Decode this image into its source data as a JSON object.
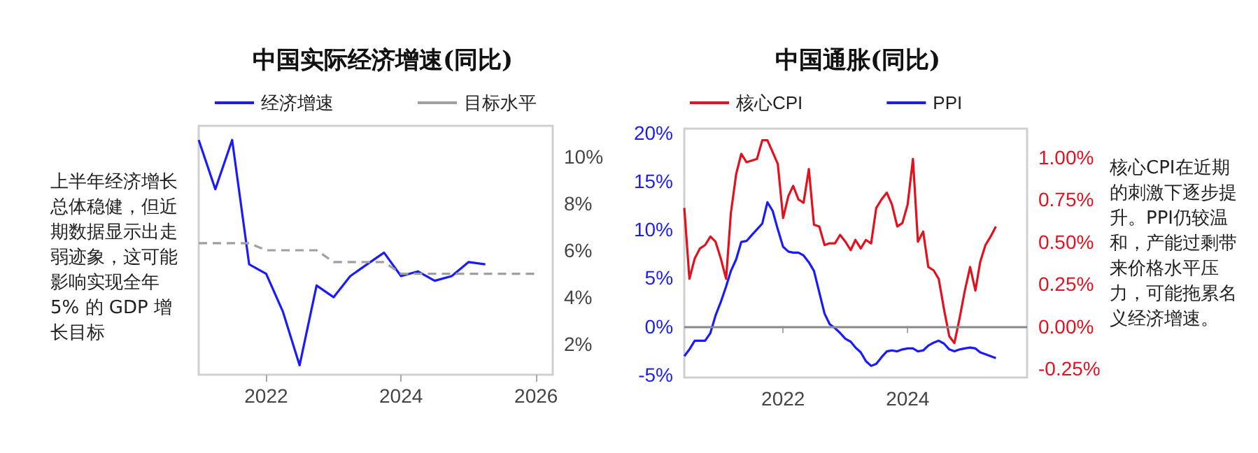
{
  "chart_data": [
    {
      "type": "line",
      "title": "中国实际经济增速(同比)",
      "legend": "top",
      "grid": false,
      "marker": "none",
      "xlim": [
        "2021-01",
        "2026-04"
      ],
      "xticks": [
        "2022",
        "2024",
        "2026"
      ],
      "y2lim": [
        0.7,
        11.3
      ],
      "y2ticks": [
        {
          "value": 2,
          "label": "2%"
        },
        {
          "value": 4,
          "label": "4%"
        },
        {
          "value": 6,
          "label": "6%"
        },
        {
          "value": 8,
          "label": "8%"
        },
        {
          "value": 10,
          "label": "10%"
        }
      ],
      "series": [
        {
          "name": "经济增速",
          "color": "#1a1aff",
          "axis": "y2",
          "line_style": "solid",
          "x": [
            "2021-01",
            "2021-04",
            "2021-07",
            "2021-10",
            "2022-01",
            "2022-04",
            "2022-07",
            "2022-10",
            "2023-01",
            "2023-04",
            "2023-07",
            "2023-10",
            "2024-01",
            "2024-04",
            "2024-07",
            "2024-10",
            "2025-01",
            "2025-04"
          ],
          "values": [
            10.7,
            8.6,
            10.7,
            5.4,
            5.0,
            3.4,
            1.1,
            4.5,
            4.0,
            4.9,
            5.4,
            5.9,
            4.9,
            5.1,
            4.7,
            4.9,
            5.5,
            5.4
          ]
        },
        {
          "name": "目标水平",
          "color": "#a0a0a0",
          "axis": "y2",
          "line_style": "dashed",
          "x": [
            "2021-01",
            "2021-10",
            "2022-01",
            "2022-10",
            "2023-01",
            "2023-10",
            "2024-01",
            "2026-01"
          ],
          "values": [
            6.3,
            6.3,
            6.0,
            6.0,
            5.5,
            5.5,
            5.0,
            5.0
          ]
        }
      ],
      "annotations": [
        "上半年经济增长总体稳健，但近期数据显示出走弱迹象，这可能影响实现全年 5% 的 GDP 增长目标"
      ]
    },
    {
      "type": "line",
      "title": "中国通胀(同比)",
      "legend": "top",
      "grid": false,
      "marker": "none",
      "xlim": [
        "2020-06",
        "2025-12"
      ],
      "xticks": [
        "2022",
        "2024"
      ],
      "ylim": [
        -5.3,
        20.4
      ],
      "yticks": [
        {
          "value": -5,
          "label": "-5%"
        },
        {
          "value": 0,
          "label": "0%"
        },
        {
          "value": 5,
          "label": "5%"
        },
        {
          "value": 10,
          "label": "10%"
        },
        {
          "value": 15,
          "label": "15%"
        },
        {
          "value": 20,
          "label": "20%"
        }
      ],
      "y2lim": [
        -0.304,
        1.169
      ],
      "y2ticks": [
        {
          "value": -0.25,
          "label": "-0.25%"
        },
        {
          "value": 0,
          "label": "0.00%"
        },
        {
          "value": 0.25,
          "label": "0.25%"
        },
        {
          "value": 0.5,
          "label": "0.50%"
        },
        {
          "value": 0.75,
          "label": "0.75%"
        },
        {
          "value": 1,
          "label": "1.00%"
        }
      ],
      "ref_lines": [
        {
          "axis": "y",
          "value": 0,
          "color": "#888888"
        }
      ],
      "series": [
        {
          "name": "核心CPI",
          "color": "#e3101e",
          "axis": "y2",
          "line_style": "solid",
          "values": [
            0.7,
            0.28,
            0.4,
            0.46,
            0.48,
            0.53,
            0.5,
            0.4,
            0.28,
            0.67,
            0.9,
            1.02,
            0.97,
            0.98,
            0.99,
            1.1,
            1.1,
            1.03,
            0.96,
            0.64,
            0.77,
            0.83,
            0.75,
            0.73,
            0.93,
            0.6,
            0.59,
            0.48,
            0.49,
            0.49,
            0.54,
            0.5,
            0.45,
            0.51,
            0.46,
            0.51,
            0.49,
            0.7,
            0.75,
            0.79,
            0.72,
            0.59,
            0.61,
            0.72,
            0.99,
            0.5,
            0.56,
            0.35,
            0.33,
            0.28,
            0.1,
            -0.06,
            -0.1,
            0.05,
            0.21,
            0.35,
            0.21,
            0.38,
            0.48,
            0.53,
            0.59
          ]
        },
        {
          "name": "PPI",
          "color": "#1a1aff",
          "axis": "y",
          "line_style": "solid",
          "values": [
            -3.1,
            -2.4,
            -1.5,
            -1.5,
            -1.5,
            -0.7,
            1.1,
            2.5,
            4.1,
            5.7,
            6.9,
            8.7,
            8.8,
            9.4,
            10.0,
            10.6,
            12.8,
            11.9,
            10.0,
            8.2,
            7.7,
            7.6,
            7.6,
            7.3,
            6.6,
            5.7,
            3.5,
            1.3,
            0.2,
            -0.2,
            -0.7,
            -1.3,
            -1.6,
            -2.2,
            -2.7,
            -3.6,
            -4.1,
            -3.9,
            -3.2,
            -2.6,
            -2.5,
            -2.6,
            -2.4,
            -2.3,
            -2.3,
            -2.6,
            -2.5,
            -2.0,
            -1.7,
            -1.5,
            -1.8,
            -2.4,
            -2.6,
            -2.4,
            -2.3,
            -2.2,
            -2.3,
            -2.7,
            -2.9,
            -3.1,
            -3.3
          ]
        }
      ],
      "x": [
        "2020-06",
        "2020-07",
        "2020-08",
        "2020-09",
        "2020-10",
        "2020-11",
        "2020-12",
        "2021-01",
        "2021-02",
        "2021-03",
        "2021-04",
        "2021-05",
        "2021-06",
        "2021-07",
        "2021-08",
        "2021-09",
        "2021-10",
        "2021-11",
        "2021-12",
        "2022-01",
        "2022-02",
        "2022-03",
        "2022-04",
        "2022-05",
        "2022-06",
        "2022-07",
        "2022-08",
        "2022-09",
        "2022-10",
        "2022-11",
        "2022-12",
        "2023-01",
        "2023-02",
        "2023-03",
        "2023-04",
        "2023-05",
        "2023-06",
        "2023-07",
        "2023-08",
        "2023-09",
        "2023-10",
        "2023-11",
        "2023-12",
        "2024-01",
        "2024-02",
        "2024-03",
        "2024-04",
        "2024-05",
        "2024-06",
        "2024-07",
        "2024-08",
        "2024-09",
        "2024-10",
        "2024-11",
        "2024-12",
        "2025-01",
        "2025-02",
        "2025-03",
        "2025-04",
        "2025-05",
        "2025-06"
      ],
      "annotations": [
        "核心CPI在近期的刺激下逐步提升。PPI仍较温和，产能过剩带来价格水平压力，可能拖累名义经济增速。"
      ]
    }
  ]
}
